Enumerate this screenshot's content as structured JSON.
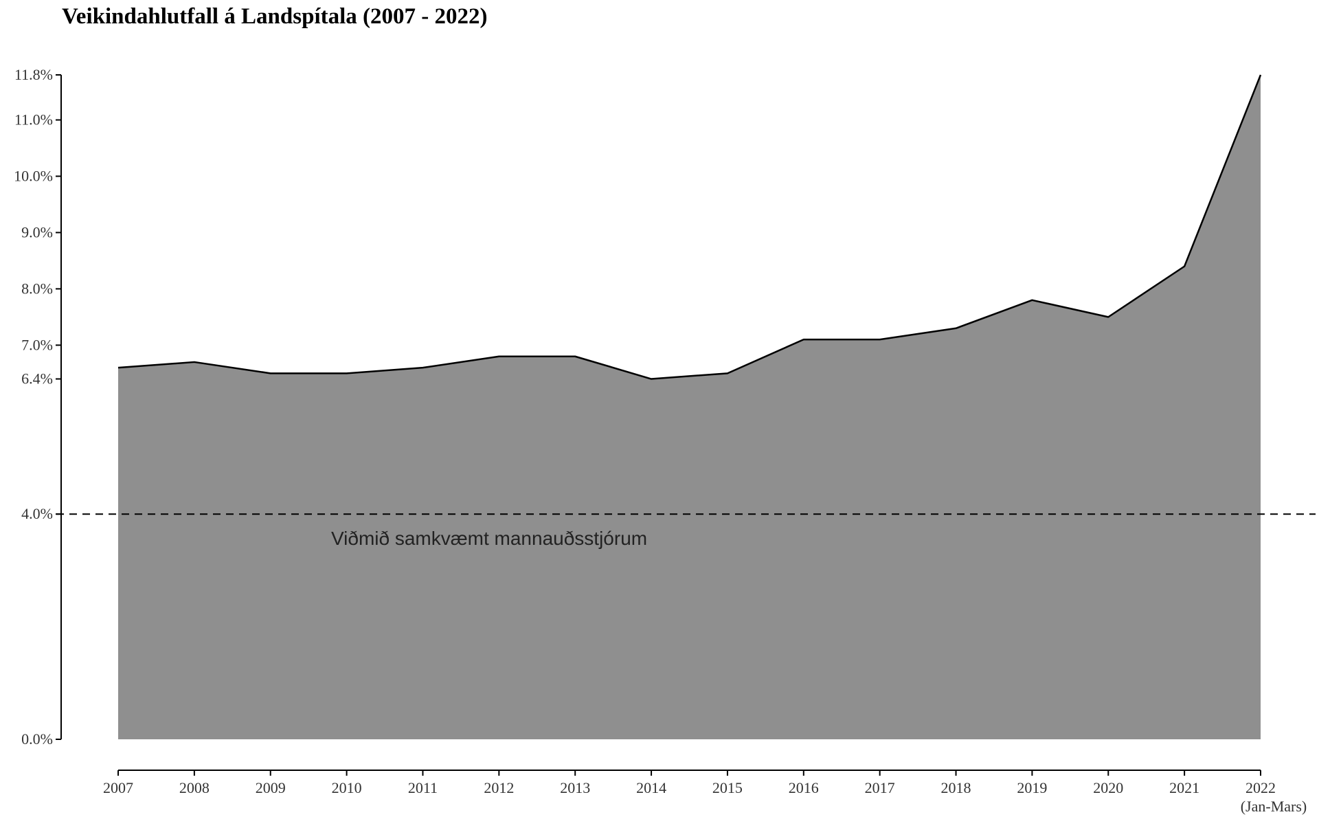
{
  "chart_data": {
    "type": "area",
    "title": "Veikindahlutfall á Landspítala (2007 - 2022)",
    "xlabel": "",
    "ylabel": "",
    "categories": [
      "2007",
      "2008",
      "2009",
      "2010",
      "2011",
      "2012",
      "2013",
      "2014",
      "2015",
      "2016",
      "2017",
      "2018",
      "2019",
      "2020",
      "2021",
      "2022"
    ],
    "last_category_note": "(Jan-Mars)",
    "values": [
      6.6,
      6.7,
      6.5,
      6.5,
      6.6,
      6.8,
      6.8,
      6.4,
      6.5,
      7.1,
      7.1,
      7.3,
      7.8,
      7.5,
      8.4,
      11.8
    ],
    "ylim": [
      0,
      11.8
    ],
    "y_ticks": [
      0.0,
      4.0,
      6.4,
      7.0,
      8.0,
      9.0,
      10.0,
      11.0,
      11.8
    ],
    "y_tick_labels": [
      "0.0%",
      "4.0%",
      "6.4%",
      "7.0%",
      "8.0%",
      "9.0%",
      "10.0%",
      "11.0%",
      "11.8%"
    ],
    "reference_line": {
      "value": 4.0,
      "label": "Viðmið samkvæmt mannauðsstjórum",
      "style": "dashed"
    },
    "grid": false,
    "legend": "none",
    "colors": {
      "fill": "#8f8f8f",
      "line": "#000000",
      "text": "#333333"
    }
  }
}
